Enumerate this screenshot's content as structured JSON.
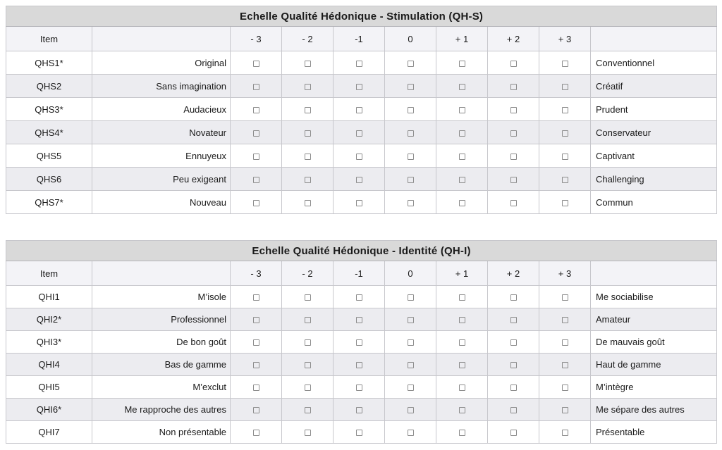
{
  "colors": {
    "title_bar_bg": "#d9d9d9",
    "header_row_bg": "#f3f3f7",
    "alt_row_bg": "#ececf0",
    "outer_border": "#a2b9c6",
    "inner_border": "#c7c7cc",
    "checkbox_border": "#8c8c8c",
    "text": "#1a1a1a"
  },
  "tables": [
    {
      "title": "Echelle Qualité Hédonique - Stimulation (QH-S)",
      "item_header": "Item",
      "columns": [
        "- 3",
        "- 2",
        "-1",
        "0",
        "+ 1",
        "+ 2",
        "+ 3"
      ],
      "rows": [
        {
          "item": "QHS1*",
          "left": "Original",
          "right": "Conventionnel"
        },
        {
          "item": "QHS2",
          "left": "Sans imagination",
          "right": "Créatif"
        },
        {
          "item": "QHS3*",
          "left": "Audacieux",
          "right": "Prudent"
        },
        {
          "item": "QHS4*",
          "left": "Novateur",
          "right": "Conservateur"
        },
        {
          "item": "QHS5",
          "left": "Ennuyeux",
          "right": "Captivant"
        },
        {
          "item": "QHS6",
          "left": "Peu exigeant",
          "right": "Challenging"
        },
        {
          "item": "QHS7*",
          "left": "Nouveau",
          "right": "Commun"
        }
      ]
    },
    {
      "title": "Echelle Qualité Hédonique - Identité (QH-I)",
      "item_header": "Item",
      "columns": [
        "- 3",
        "- 2",
        "-1",
        "0",
        "+ 1",
        "+ 2",
        "+ 3"
      ],
      "rows": [
        {
          "item": "QHI1",
          "left": "M’isole",
          "right": "Me sociabilise"
        },
        {
          "item": "QHI2*",
          "left": "Professionnel",
          "right": "Amateur"
        },
        {
          "item": "QHI3*",
          "left": "De bon goût",
          "right": "De mauvais goût"
        },
        {
          "item": "QHI4",
          "left": "Bas de gamme",
          "right": "Haut de gamme"
        },
        {
          "item": "QHI5",
          "left": "M’exclut",
          "right": "M’intègre"
        },
        {
          "item": "QHI6*",
          "left": "Me rapproche des autres",
          "right": "Me sépare des autres"
        },
        {
          "item": "QHI7",
          "left": "Non présentable",
          "right": "Présentable"
        }
      ]
    }
  ]
}
